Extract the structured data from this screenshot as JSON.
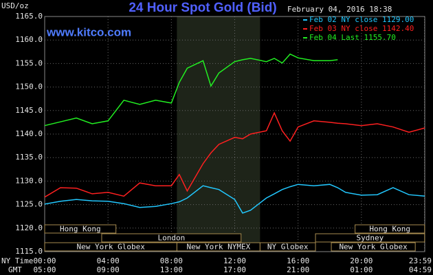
{
  "chart_data": {
    "type": "line",
    "title": "24 Hour Spot Gold (Bid)",
    "date": "February 04, 2016 18:38",
    "source": "www.kitco.com",
    "ylabel": "USD/oz",
    "x_row_labels": [
      "NY Time",
      "GMT"
    ],
    "x": [
      0,
      1,
      2,
      3,
      4,
      5,
      6,
      7,
      8,
      8.5,
      9,
      10,
      10.5,
      11,
      12,
      12.5,
      13,
      14,
      14.5,
      15,
      15.5,
      16,
      17,
      18,
      18.5,
      19,
      20,
      21,
      22,
      23,
      24
    ],
    "series": [
      {
        "name": "Feb 02 NY close 1129.00",
        "color": "#22c8ff",
        "values": [
          1125.1,
          1125.7,
          1126.1,
          1125.8,
          1125.7,
          1125.2,
          1124.4,
          1124.6,
          1125.2,
          1125.6,
          1126.4,
          1129.0,
          1128.6,
          1128.2,
          1126.1,
          1123.2,
          1123.8,
          1126.4,
          1127.3,
          1128.2,
          1128.8,
          1129.3,
          1129.0,
          1129.3,
          1128.6,
          1127.6,
          1127.0,
          1127.1,
          1128.6,
          1127.1,
          1126.8
        ]
      },
      {
        "name": "Feb 03 NY close 1142.40",
        "color": "#ff2020",
        "values": [
          1126.6,
          1128.6,
          1128.5,
          1127.3,
          1127.6,
          1126.8,
          1129.6,
          1129.0,
          1129.0,
          1131.4,
          1127.9,
          1133.7,
          1136.0,
          1137.8,
          1139.3,
          1139.0,
          1140.0,
          1140.7,
          1144.5,
          1140.7,
          1138.5,
          1141.5,
          1142.8,
          1142.5,
          1142.3,
          1142.2,
          1141.8,
          1142.2,
          1141.5,
          1140.4,
          1141.3
        ]
      },
      {
        "name": "Feb 04 Last 1155.70",
        "color": "#22f022",
        "values": [
          1141.8,
          1142.6,
          1143.4,
          1142.2,
          1142.8,
          1147.2,
          1146.3,
          1147.2,
          1146.6,
          1151.0,
          1154.0,
          1155.6,
          1150.2,
          1153.0,
          1155.4,
          1155.8,
          1156.1,
          1155.4,
          1156.1,
          1155.1,
          1157.0,
          1156.2,
          1155.6,
          1155.6,
          1155.8,
          null,
          null,
          null,
          null,
          null,
          null
        ]
      }
    ],
    "xlim": [
      0,
      24
    ],
    "xticks": [
      {
        "value": 0,
        "label": "00:00"
      },
      {
        "value": 4,
        "label": "04:00"
      },
      {
        "value": 8,
        "label": "08:00"
      },
      {
        "value": 12,
        "label": "12:00"
      },
      {
        "value": 16,
        "label": "16:00"
      },
      {
        "value": 20,
        "label": "20:00"
      },
      {
        "value": 23.98,
        "label": "23:59"
      }
    ],
    "x2ticks": [
      {
        "value": 0,
        "label": "05:00"
      },
      {
        "value": 4,
        "label": "09:00"
      },
      {
        "value": 8,
        "label": "13:00"
      },
      {
        "value": 12,
        "label": "17:00"
      },
      {
        "value": 16,
        "label": "21:00"
      },
      {
        "value": 20,
        "label": "01:00"
      },
      {
        "value": 23.98,
        "label": "04:59"
      }
    ],
    "ylim": [
      1115,
      1165
    ],
    "yticks": [
      {
        "value": 1115,
        "label": "1115.0"
      },
      {
        "value": 1120,
        "label": "1120.0"
      },
      {
        "value": 1125,
        "label": "1125.0"
      },
      {
        "value": 1130,
        "label": "1130.0"
      },
      {
        "value": 1135,
        "label": "1135.0"
      },
      {
        "value": 1140,
        "label": "1140.0"
      },
      {
        "value": 1145,
        "label": "1145.0"
      },
      {
        "value": 1150,
        "label": "1150.0"
      },
      {
        "value": 1155,
        "label": "1155.0"
      },
      {
        "value": 1160,
        "label": "1160.0"
      },
      {
        "value": 1165,
        "label": "1165.0"
      }
    ],
    "grid": true,
    "highlight": [
      8.35,
      13.6
    ],
    "session_rows": [
      [
        {
          "label": "Hong Kong",
          "start": 0,
          "end": 4.5
        },
        {
          "label": "Hong Kong",
          "start": 19.6,
          "end": 23.99
        }
      ],
      [
        {
          "label": "London",
          "start": 3.6,
          "end": 12.4
        },
        {
          "label": "Sydney",
          "start": 17.1,
          "end": 23.99
        }
      ],
      [
        {
          "label": "New York Globex",
          "start": 0,
          "end": 8.35
        },
        {
          "label": "New York NYMEX",
          "start": 8.35,
          "end": 13.6
        },
        {
          "label": "NY Globex",
          "start": 13.6,
          "end": 17.1
        },
        {
          "label": "New York Globex",
          "start": 18.1,
          "end": 23.4
        }
      ]
    ]
  }
}
